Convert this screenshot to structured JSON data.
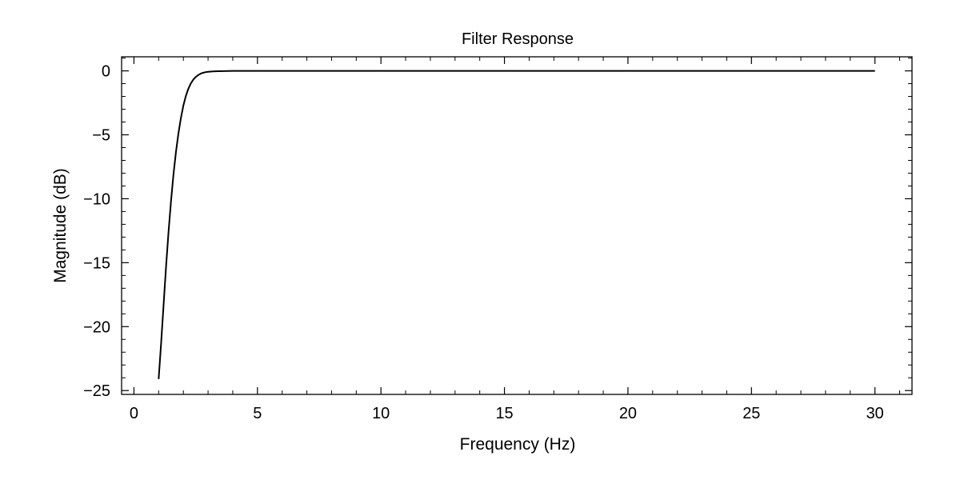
{
  "chart_data": {
    "type": "line",
    "title": "Filter Response",
    "xlabel": "Frequency (Hz)",
    "ylabel": "Magnitude (dB)",
    "xlim": [
      -0.5,
      31.5
    ],
    "ylim": [
      -25.3,
      1.1
    ],
    "x_ticks": [
      0,
      5,
      10,
      15,
      20,
      25,
      30
    ],
    "x_tick_labels": [
      "0",
      "5",
      "10",
      "15",
      "20",
      "25",
      "30"
    ],
    "x_minor_step": 1,
    "y_ticks": [
      0,
      -5,
      -10,
      -15,
      -20,
      -25
    ],
    "y_tick_labels": [
      "0",
      "−5",
      "−10",
      "−15",
      "−20",
      "−25"
    ],
    "y_minor_step": 1,
    "grid": false,
    "series": [
      {
        "name": "Magnitude",
        "color": "#000000",
        "x": [
          1.0,
          1.1,
          1.2,
          1.3,
          1.4,
          1.5,
          1.6,
          1.7,
          1.8,
          1.9,
          2.0,
          2.1,
          2.2,
          2.3,
          2.4,
          2.5,
          2.6,
          2.7,
          2.8,
          2.9,
          3.0,
          3.2,
          3.4,
          3.6,
          3.8,
          4.0,
          4.5,
          5.0,
          6.0,
          8.0,
          10.0,
          15.0,
          20.0,
          25.0,
          30.0
        ],
        "values": [
          -24.1,
          -21.3,
          -18.3,
          -15.3,
          -12.6,
          -10.2,
          -8.1,
          -6.35,
          -4.9,
          -3.7,
          -2.72,
          -1.97,
          -1.41,
          -0.99,
          -0.69,
          -0.48,
          -0.33,
          -0.22,
          -0.15,
          -0.1,
          -0.07,
          -0.04,
          -0.025,
          -0.015,
          -0.01,
          -0.006,
          -0.003,
          -0.001,
          0,
          0,
          0,
          0,
          0,
          0,
          0
        ]
      }
    ]
  }
}
